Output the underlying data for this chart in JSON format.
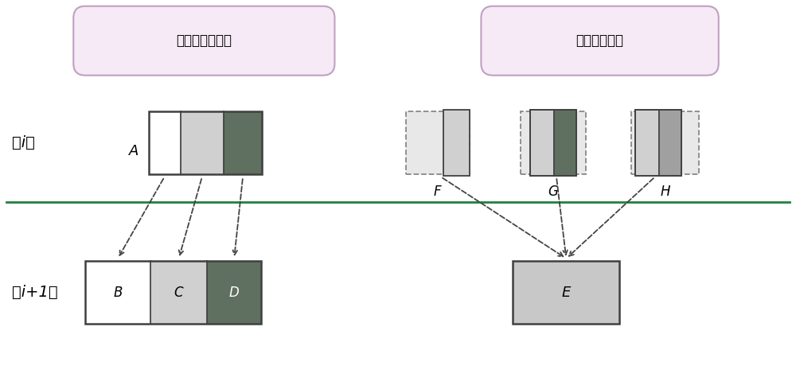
{
  "title1": "不立即执行合并",
  "title2": "下层驱动合并",
  "label_i": "第i层",
  "label_i1": "第i+1层",
  "label_A": "A",
  "label_B": "B",
  "label_C": "C",
  "label_D": "D",
  "label_E": "E",
  "label_F": "F",
  "label_G": "G",
  "label_H": "H",
  "color_white": "#ffffff",
  "color_seg_light": "#d0d0d0",
  "color_seg_mid": "#a0a0a0",
  "color_seg_dark": "#607060",
  "color_border_solid": "#404040",
  "color_border_dashed": "#888888",
  "color_pill_bg": "#f5eaf5",
  "color_pill_border": "#c0a0c0",
  "color_divider": "#208040",
  "color_dashed_fill": "#e8e8e8",
  "color_E_fill": "#c8c8c8"
}
